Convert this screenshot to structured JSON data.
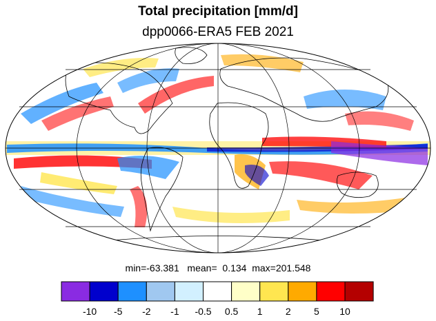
{
  "title": "Total precipitation [mm/d]",
  "subtitle": "dpp0066-ERA5 FEB 2021",
  "stats": {
    "min_label": "min=",
    "min_value": "-63.381",
    "mean_label": "mean=",
    "mean_value": "0.134",
    "max_label": "max=",
    "max_value": "201.548"
  },
  "colorbar": {
    "colors": [
      "#8a2be2",
      "#0000cd",
      "#1e90ff",
      "#a0c8f0",
      "#d2f0ff",
      "#ffffff",
      "#ffffc8",
      "#ffe650",
      "#ffaa00",
      "#ff0000",
      "#b40000"
    ],
    "tick_labels": [
      "-10",
      "-5",
      "-2",
      "-1",
      "-0.5",
      "0.5",
      "1",
      "2",
      "5",
      "10"
    ]
  },
  "map": {
    "projection": "Mollweide",
    "colors": {
      "land_outline": "#000000",
      "grid": "#000000"
    }
  }
}
